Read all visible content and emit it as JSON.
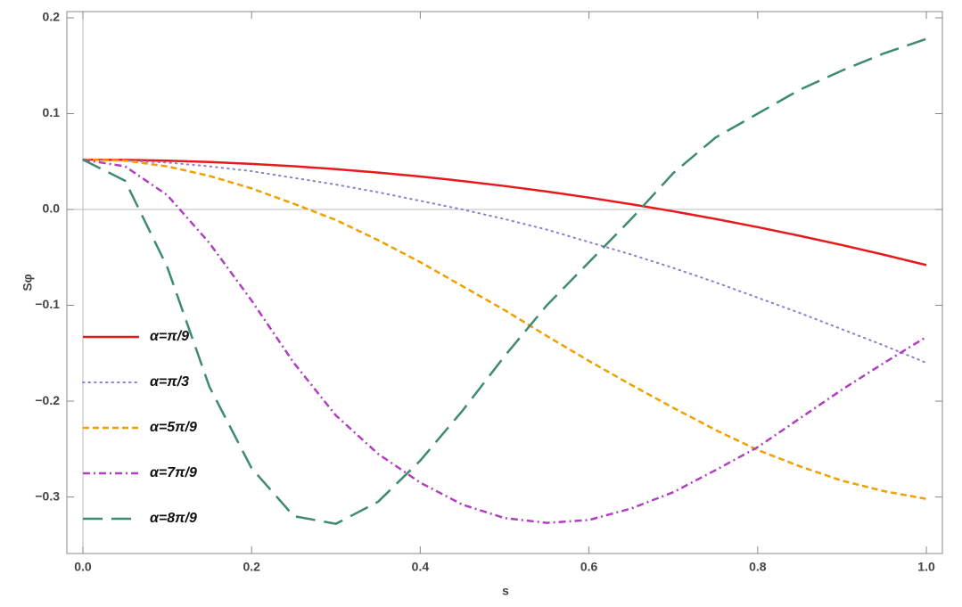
{
  "chart_data": {
    "type": "line",
    "x_label": "s",
    "y_label": "Sφ",
    "xlim": [
      -0.019,
      1.019
    ],
    "ylim": [
      -0.359,
      0.2065
    ],
    "xticks": [
      {
        "value": 0,
        "label": "0.0"
      },
      0.2,
      0.4,
      0.6,
      0.8,
      {
        "value": 1,
        "label": "1.0"
      }
    ],
    "yticks": [
      {
        "value": -0.3,
        "label": "−0.3"
      },
      {
        "value": -0.2,
        "label": "−0.2"
      },
      {
        "value": -0.1,
        "label": "−0.1"
      },
      {
        "value": 0,
        "label": "0.0"
      },
      0.1,
      0.2
    ],
    "legend": "left",
    "x": [
      0,
      0.05,
      0.1,
      0.15,
      0.2,
      0.25,
      0.3,
      0.35,
      0.4,
      0.45,
      0.5,
      0.55,
      0.6,
      0.65,
      0.7,
      0.75,
      0.8,
      0.85,
      0.9,
      0.95,
      1
    ],
    "series": [
      {
        "name": "α=π/9",
        "color": "#e8191c",
        "dash": "solid",
        "values": [
          0.052,
          0.0517,
          0.0509,
          0.0495,
          0.0476,
          0.0451,
          0.0421,
          0.0385,
          0.0344,
          0.0297,
          0.0245,
          0.0187,
          0.0124,
          0.0055,
          -0.0019,
          -0.0099,
          -0.0184,
          -0.0275,
          -0.0371,
          -0.0473,
          -0.058
        ]
      },
      {
        "name": "α=π/3",
        "color": "#8a7fd0",
        "dash": "dotted",
        "values": [
          0.052,
          0.051,
          0.049,
          0.045,
          0.04,
          0.033,
          0.026,
          0.018,
          0.009,
          0.0,
          -0.01,
          -0.021,
          -0.034,
          -0.047,
          -0.061,
          -0.076,
          -0.092,
          -0.108,
          -0.125,
          -0.142,
          -0.16
        ]
      },
      {
        "name": "α=5π/9",
        "color": "#f0a000",
        "dash": "dashed",
        "values": [
          0.052,
          0.051,
          0.045,
          0.035,
          0.022,
          0.006,
          -0.011,
          -0.032,
          -0.055,
          -0.08,
          -0.105,
          -0.132,
          -0.158,
          -0.183,
          -0.207,
          -0.23,
          -0.251,
          -0.268,
          -0.283,
          -0.294,
          -0.302
        ]
      },
      {
        "name": "α=7π/9",
        "color": "#b040c0",
        "dash": "dashdot",
        "values": [
          0.052,
          0.045,
          0.015,
          -0.035,
          -0.095,
          -0.16,
          -0.215,
          -0.255,
          -0.285,
          -0.308,
          -0.322,
          -0.327,
          -0.324,
          -0.312,
          -0.295,
          -0.272,
          -0.248,
          -0.218,
          -0.188,
          -0.16,
          -0.133
        ]
      },
      {
        "name": "α=8π/9",
        "color": "#3f8a73",
        "dash": "longdash",
        "values": [
          0.052,
          0.03,
          -0.06,
          -0.185,
          -0.27,
          -0.32,
          -0.328,
          -0.305,
          -0.262,
          -0.21,
          -0.153,
          -0.1,
          -0.055,
          -0.01,
          0.038,
          0.075,
          0.1,
          0.125,
          0.145,
          0.163,
          0.178
        ]
      }
    ]
  }
}
